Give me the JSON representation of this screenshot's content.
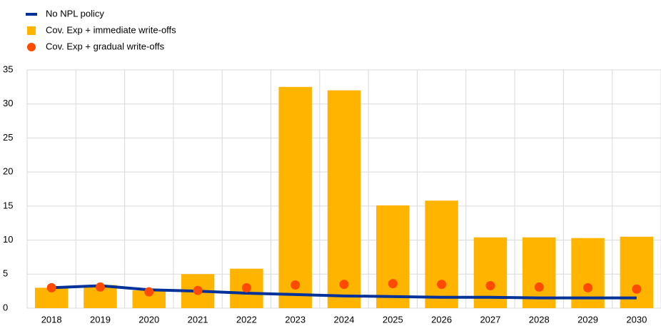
{
  "chart_data": {
    "type": "combo",
    "categories": [
      "2018",
      "2019",
      "2020",
      "2021",
      "2022",
      "2023",
      "2024",
      "2025",
      "2026",
      "2027",
      "2028",
      "2029",
      "2030"
    ],
    "series": [
      {
        "name": "No NPL policy",
        "type": "line",
        "color": "#003299",
        "values": [
          3.0,
          3.3,
          2.7,
          2.5,
          2.2,
          2.0,
          1.8,
          1.7,
          1.6,
          1.6,
          1.5,
          1.5,
          1.5
        ]
      },
      {
        "name": "Cov. Exp + immediate write-offs",
        "type": "bar",
        "color": "#ffb400",
        "values": [
          3.0,
          3.4,
          2.6,
          5.0,
          5.8,
          32.5,
          32.0,
          15.1,
          15.8,
          10.4,
          10.4,
          10.3,
          10.5
        ]
      },
      {
        "name": "Cov. Exp + gradual write-offs",
        "type": "scatter",
        "color": "#ff4b00",
        "values": [
          3.0,
          3.1,
          2.4,
          2.6,
          3.0,
          3.4,
          3.5,
          3.6,
          3.5,
          3.3,
          3.1,
          3.0,
          2.8
        ]
      }
    ],
    "ylim": [
      0,
      35
    ],
    "yticks": [
      0,
      5,
      10,
      15,
      20,
      25,
      30,
      35
    ],
    "grid": true
  }
}
